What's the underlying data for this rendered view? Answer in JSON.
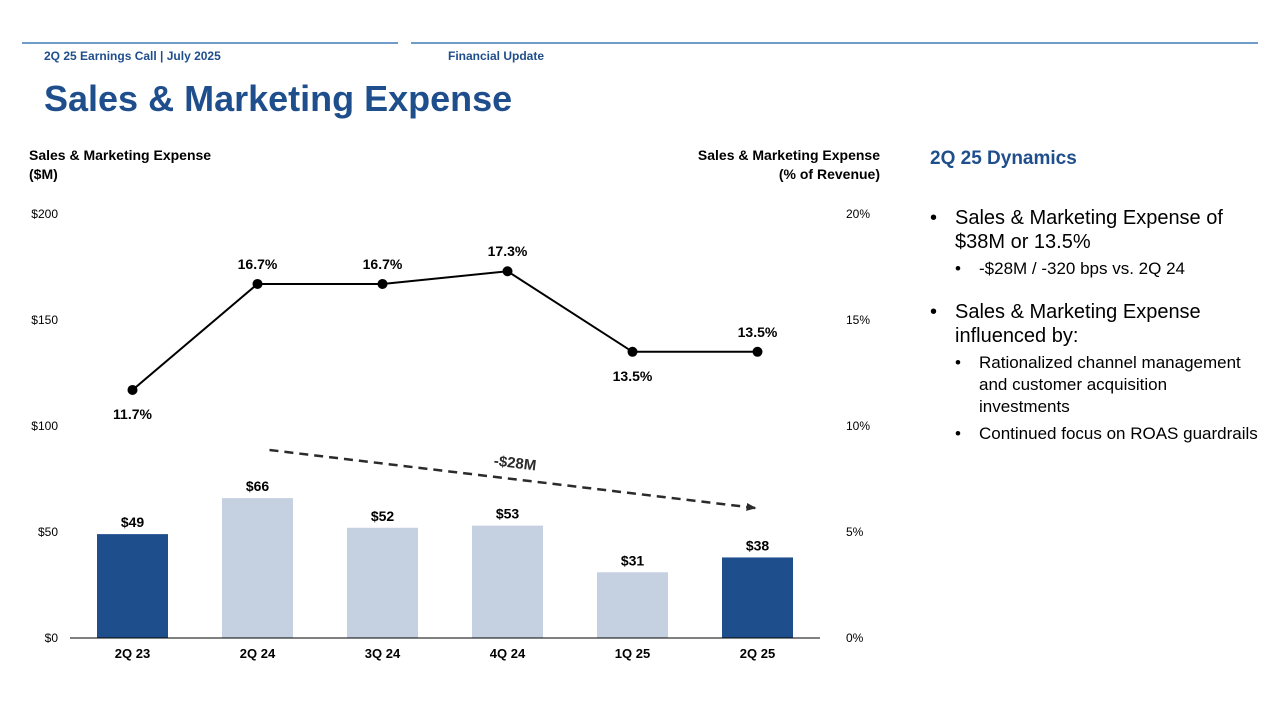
{
  "header": {
    "left_label": "2Q 25 Earnings Call | July 2025",
    "right_label": "Financial Update",
    "title": "Sales & Marketing Expense"
  },
  "axes": {
    "left_title_line1": "Sales & Marketing Expense",
    "left_title_line2": "($M)",
    "right_title_line1": "Sales & Marketing Expense",
    "right_title_line2": "(% of Revenue)"
  },
  "chart_data": {
    "type": "bar",
    "categories": [
      "2Q 23",
      "2Q 24",
      "3Q 24",
      "4Q 24",
      "1Q 25",
      "2Q 25"
    ],
    "series": [
      {
        "name": "Sales & Marketing Expense ($M)",
        "type": "bar",
        "axis": "left",
        "values": [
          49,
          66,
          52,
          53,
          31,
          38
        ],
        "labels": [
          "$49",
          "$66",
          "$52",
          "$53",
          "$31",
          "$38"
        ],
        "highlight": [
          true,
          false,
          false,
          false,
          false,
          true
        ]
      },
      {
        "name": "Sales & Marketing Expense (% of Revenue)",
        "type": "line",
        "axis": "right",
        "values": [
          11.7,
          16.7,
          16.7,
          17.3,
          13.5,
          13.5
        ],
        "labels": [
          "11.7%",
          "16.7%",
          "16.7%",
          "17.3%",
          "13.5%",
          "13.5%"
        ],
        "label_position": [
          "below",
          "above",
          "above",
          "above",
          "below",
          "above"
        ]
      }
    ],
    "left_axis": {
      "range": [
        0,
        200
      ],
      "ticks": [
        0,
        50,
        100,
        150,
        200
      ],
      "tick_labels": [
        "$0",
        "$50",
        "$100",
        "$150",
        "$200"
      ]
    },
    "right_axis": {
      "range": [
        0,
        20
      ],
      "ticks": [
        0,
        5,
        10,
        15,
        20
      ],
      "tick_labels": [
        "0%",
        "5%",
        "10%",
        "15%",
        "20%"
      ]
    },
    "annotation": {
      "text": "-$28M",
      "from_category": "2Q 24",
      "to_category": "2Q 25",
      "style": "dashed-arrow"
    },
    "colors": {
      "highlight_bar": "#1f4e8c",
      "other_bar": "#c5d0e1",
      "line": "#000000"
    },
    "grid": false,
    "legend": "none"
  },
  "dynamics": {
    "title": "2Q 25 Dynamics",
    "bullets": [
      {
        "text": "Sales & Marketing Expense of $38M or 13.5%",
        "sub": [
          "-$28M / -320 bps vs. 2Q 24"
        ]
      },
      {
        "text": "Sales & Marketing Expense influenced by:",
        "sub": [
          "Rationalized channel management and customer acquisition investments",
          "Continued focus on ROAS guardrails"
        ]
      }
    ]
  }
}
